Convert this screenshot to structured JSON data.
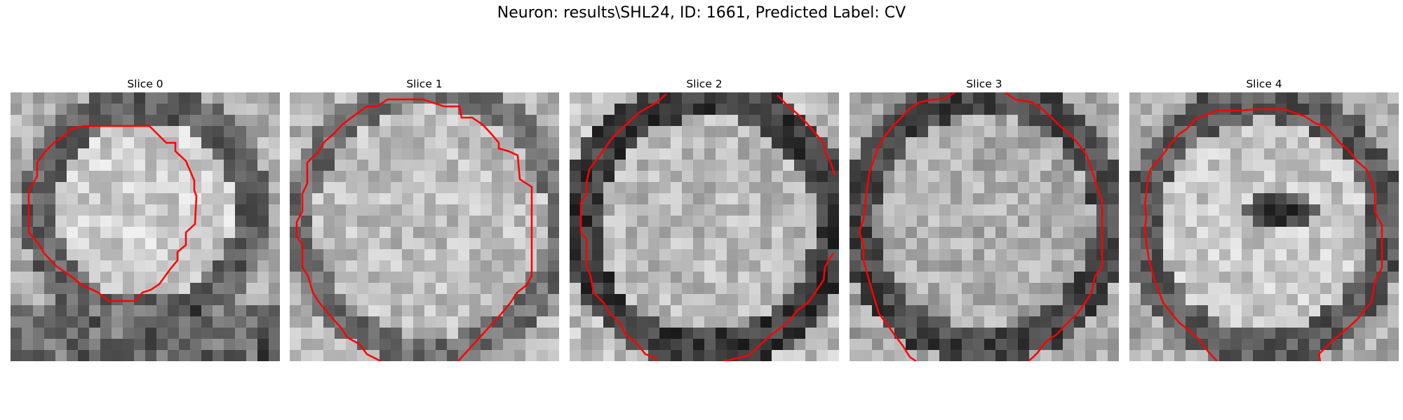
{
  "figure": {
    "title": "Neuron: results\\SHL24, ID: 1661, Predicted Label: CV",
    "contour_color": "#ff0000"
  },
  "panels": [
    {
      "title": "Slice 0"
    },
    {
      "title": "Slice 1"
    },
    {
      "title": "Slice 2"
    },
    {
      "title": "Slice 3"
    },
    {
      "title": "Slice 4"
    }
  ]
}
